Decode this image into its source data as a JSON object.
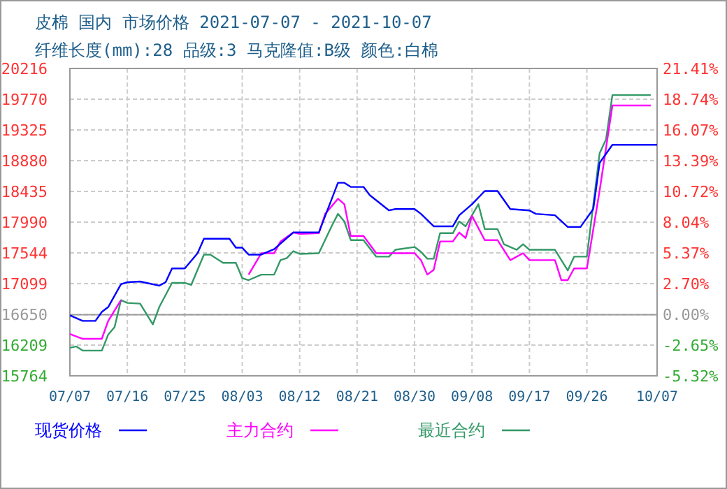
{
  "chart_data": {
    "type": "line",
    "title": "皮棉 国内 市场价格 2021-07-07 - 2021-10-07",
    "subtitle": "纤维长度(mm):28 品级:3 马克隆值:B级 颜色:白棉",
    "xlim": [
      "2021-07-07",
      "2021-10-07"
    ],
    "xticks": [
      {
        "value": "2021-07-07",
        "label": "07/07"
      },
      {
        "value": "2021-07-16",
        "label": "07/16"
      },
      {
        "value": "2021-07-25",
        "label": "07/25"
      },
      {
        "value": "2021-08-03",
        "label": "08/03"
      },
      {
        "value": "2021-08-12",
        "label": "08/12"
      },
      {
        "value": "2021-08-21",
        "label": "08/21"
      },
      {
        "value": "2021-08-30",
        "label": "08/30"
      },
      {
        "value": "2021-09-08",
        "label": "09/08"
      },
      {
        "value": "2021-09-17",
        "label": "09/17"
      },
      {
        "value": "2021-09-26",
        "label": "09/26"
      },
      {
        "value": "2021-10-07",
        "label": "10/07"
      }
    ],
    "ylim": [
      15764,
      20216
    ],
    "yticks": [
      15764,
      16209,
      16650,
      17099,
      17544,
      17990,
      18435,
      18880,
      19325,
      19770,
      20216
    ],
    "y2lim": [
      -5.32,
      21.41
    ],
    "y2ticks": [
      {
        "value": -5.32,
        "label": "-5.32%"
      },
      {
        "value": -2.65,
        "label": "-2.65%"
      },
      {
        "value": 0,
        "label": "0.00%"
      },
      {
        "value": 2.7,
        "label": "2.70%"
      },
      {
        "value": 5.37,
        "label": "5.37%"
      },
      {
        "value": 8.04,
        "label": "8.04%"
      },
      {
        "value": 10.72,
        "label": "10.72%"
      },
      {
        "value": 13.39,
        "label": "13.39%"
      },
      {
        "value": 16.07,
        "label": "16.07%"
      },
      {
        "value": 18.74,
        "label": "18.74%"
      },
      {
        "value": 21.41,
        "label": "21.41%"
      }
    ],
    "grid": true,
    "legend": "bottom",
    "line_style": "solid",
    "marker": "none",
    "ref_lines": [
      {
        "axis": "y2",
        "value": 0,
        "color": "#999999"
      }
    ],
    "series": [
      {
        "name": "最近合约",
        "color": "#339966",
        "x": [
          "2021-07-07",
          "2021-07-08",
          "2021-07-09",
          "2021-07-12",
          "2021-07-13",
          "2021-07-14",
          "2021-07-15",
          "2021-07-16",
          "2021-07-18",
          "2021-07-20",
          "2021-07-21",
          "2021-07-23",
          "2021-07-25",
          "2021-07-26",
          "2021-07-28",
          "2021-07-29",
          "2021-07-31",
          "2021-08-02",
          "2021-08-03",
          "2021-08-04",
          "2021-08-06",
          "2021-08-08",
          "2021-08-09",
          "2021-08-10",
          "2021-08-11",
          "2021-08-12",
          "2021-08-15",
          "2021-08-17",
          "2021-08-18",
          "2021-08-19",
          "2021-08-20",
          "2021-08-22",
          "2021-08-24",
          "2021-08-26",
          "2021-08-27",
          "2021-08-30",
          "2021-08-31",
          "2021-09-01",
          "2021-09-02",
          "2021-09-03",
          "2021-09-05",
          "2021-09-06",
          "2021-09-07",
          "2021-09-09",
          "2021-09-10",
          "2021-09-12",
          "2021-09-13",
          "2021-09-15",
          "2021-09-16",
          "2021-09-17",
          "2021-09-21",
          "2021-09-23",
          "2021-09-24",
          "2021-09-26",
          "2021-09-28",
          "2021-09-29",
          "2021-09-30",
          "2021-10-06"
        ],
        "values": [
          16170,
          16190,
          16130,
          16130,
          16360,
          16470,
          16860,
          16820,
          16810,
          16510,
          16760,
          17110,
          17110,
          17080,
          17520,
          17520,
          17400,
          17400,
          17180,
          17150,
          17230,
          17230,
          17440,
          17470,
          17570,
          17530,
          17540,
          17930,
          18110,
          18000,
          17730,
          17730,
          17490,
          17490,
          17590,
          17630,
          17560,
          17460,
          17460,
          17830,
          17830,
          18000,
          17930,
          18250,
          17890,
          17890,
          17670,
          17590,
          17670,
          17590,
          17590,
          17290,
          17490,
          17490,
          18990,
          19190,
          19830,
          19830
        ]
      },
      {
        "name": "主力合约",
        "color": "#ff00ff",
        "x": [
          "2021-07-07",
          "2021-07-09",
          "2021-07-12",
          "2021-07-13",
          "2021-07-15",
          "2021-07-16",
          "2021-08-03",
          "2021-08-04",
          "2021-08-06",
          "2021-08-08",
          "2021-08-09",
          "2021-08-11",
          "2021-08-12",
          "2021-08-15",
          "2021-08-16",
          "2021-08-18",
          "2021-08-19",
          "2021-08-20",
          "2021-08-22",
          "2021-08-24",
          "2021-08-27",
          "2021-08-30",
          "2021-08-31",
          "2021-09-01",
          "2021-09-02",
          "2021-09-03",
          "2021-09-05",
          "2021-09-06",
          "2021-09-07",
          "2021-09-08",
          "2021-09-10",
          "2021-09-12",
          "2021-09-14",
          "2021-09-16",
          "2021-09-17",
          "2021-09-21",
          "2021-09-22",
          "2021-09-23",
          "2021-09-24",
          "2021-09-26",
          "2021-09-28",
          "2021-09-30",
          "2021-10-06"
        ],
        "values": [
          16370,
          16300,
          16300,
          16560,
          16860,
          null,
          null,
          17230,
          17540,
          17540,
          17710,
          17840,
          17820,
          17830,
          18110,
          18330,
          18250,
          17790,
          17790,
          17540,
          17540,
          17540,
          17440,
          17230,
          17300,
          17710,
          17710,
          17840,
          17760,
          18080,
          17730,
          17730,
          17440,
          17540,
          17440,
          17440,
          17150,
          17150,
          17320,
          17320,
          18450,
          19680,
          19680
        ]
      },
      {
        "name": "现货价格",
        "color": "#0000ff",
        "x": [
          "2021-07-07",
          "2021-07-09",
          "2021-07-11",
          "2021-07-12",
          "2021-07-13",
          "2021-07-15",
          "2021-07-16",
          "2021-07-18",
          "2021-07-19",
          "2021-07-21",
          "2021-07-22",
          "2021-07-23",
          "2021-07-25",
          "2021-07-27",
          "2021-07-28",
          "2021-08-01",
          "2021-08-02",
          "2021-08-03",
          "2021-08-04",
          "2021-08-06",
          "2021-08-08",
          "2021-08-11",
          "2021-08-15",
          "2021-08-18",
          "2021-08-19",
          "2021-08-20",
          "2021-08-22",
          "2021-08-23",
          "2021-08-26",
          "2021-08-27",
          "2021-08-30",
          "2021-08-31",
          "2021-09-02",
          "2021-09-05",
          "2021-09-06",
          "2021-09-08",
          "2021-09-10",
          "2021-09-12",
          "2021-09-14",
          "2021-09-17",
          "2021-09-18",
          "2021-09-21",
          "2021-09-23",
          "2021-09-25",
          "2021-09-27",
          "2021-09-28",
          "2021-09-30",
          "2021-10-07"
        ],
        "values": [
          16640,
          16560,
          16560,
          16690,
          16760,
          17090,
          17120,
          17130,
          17110,
          17070,
          17120,
          17320,
          17320,
          17540,
          17750,
          17750,
          17620,
          17620,
          17520,
          17520,
          17600,
          17840,
          17840,
          18560,
          18560,
          18500,
          18500,
          18380,
          18160,
          18180,
          18180,
          18110,
          17930,
          17930,
          18090,
          18250,
          18440,
          18440,
          18180,
          18160,
          18110,
          18090,
          17920,
          17920,
          18180,
          18850,
          19110,
          19110
        ]
      }
    ]
  }
}
